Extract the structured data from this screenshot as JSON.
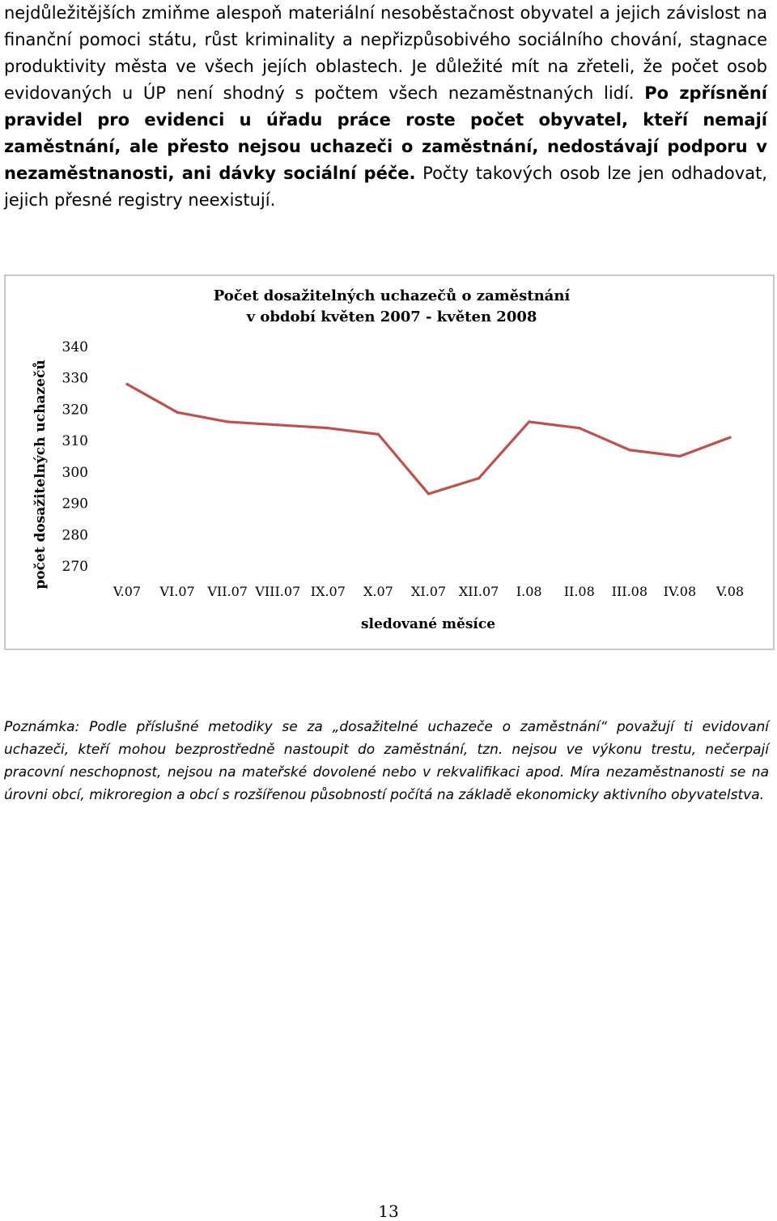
{
  "document": {
    "paragraph": {
      "intro": "nejdůležitějších zmiňme alespoň materiální nesoběstačnost obyvatel a jejich závislost na finanční pomoci státu, růst kriminality a nepřizpůsobivého sociálního chování, stagnace produktivity města ve všech jejích oblastech. Je důležité mít na zřeteli, že počet osob evidovaných u ÚP není shodný s počtem všech nezaměstnaných lidí.",
      "bold": "Po zpřísnění pravidel pro evidenci u úřadu práce roste počet obyvatel, kteří nemají zaměstnání, ale přesto nejsou uchazeči o zaměstnání, nedostávají podporu v nezaměstnanosti, ani dávky sociální péče.",
      "outro": "Počty takových osob lze jen odhadovat, jejich přesné registry neexistují."
    },
    "note": "Poznámka: Podle příslušné metodiky se za „dosažitelné uchazeče o zaměstnání“ považují ti evidovaní uchazeči, kteří mohou bezprostředně nastoupit do zaměstnání, tzn. nejsou ve výkonu trestu, nečerpají pracovní neschopnost, nejsou na mateřské dovolené nebo v rekvalifikaci apod. Míra nezaměstnanosti se na úrovni obcí, mikroregion a obcí s rozšířenou působností počítá na základě ekonomicky aktivního obyvatelstva.",
    "page_number": "13"
  },
  "chart_data": {
    "type": "line",
    "title_line1": "Počet dosažitelných uchazečů o zaměstnání",
    "title_line2": "v období květen 2007 - květen 2008",
    "xlabel": "sledované měsíce",
    "ylabel": "počet dosažitelných uchazečů",
    "categories": [
      "V.07",
      "VI.07",
      "VII.07",
      "VIII.07",
      "IX.07",
      "X.07",
      "XI.07",
      "XII.07",
      "I.08",
      "II.08",
      "III.08",
      "IV.08",
      "V.08"
    ],
    "series": [
      {
        "values": [
          328,
          319,
          316,
          315,
          314,
          312,
          293,
          298,
          316,
          314,
          307,
          305,
          311
        ]
      }
    ],
    "ylim": [
      270,
      340
    ],
    "yticks": [
      340,
      330,
      320,
      310,
      300,
      290,
      280,
      270
    ],
    "grid": false,
    "legend": "none",
    "line_color": "#c0504d"
  }
}
